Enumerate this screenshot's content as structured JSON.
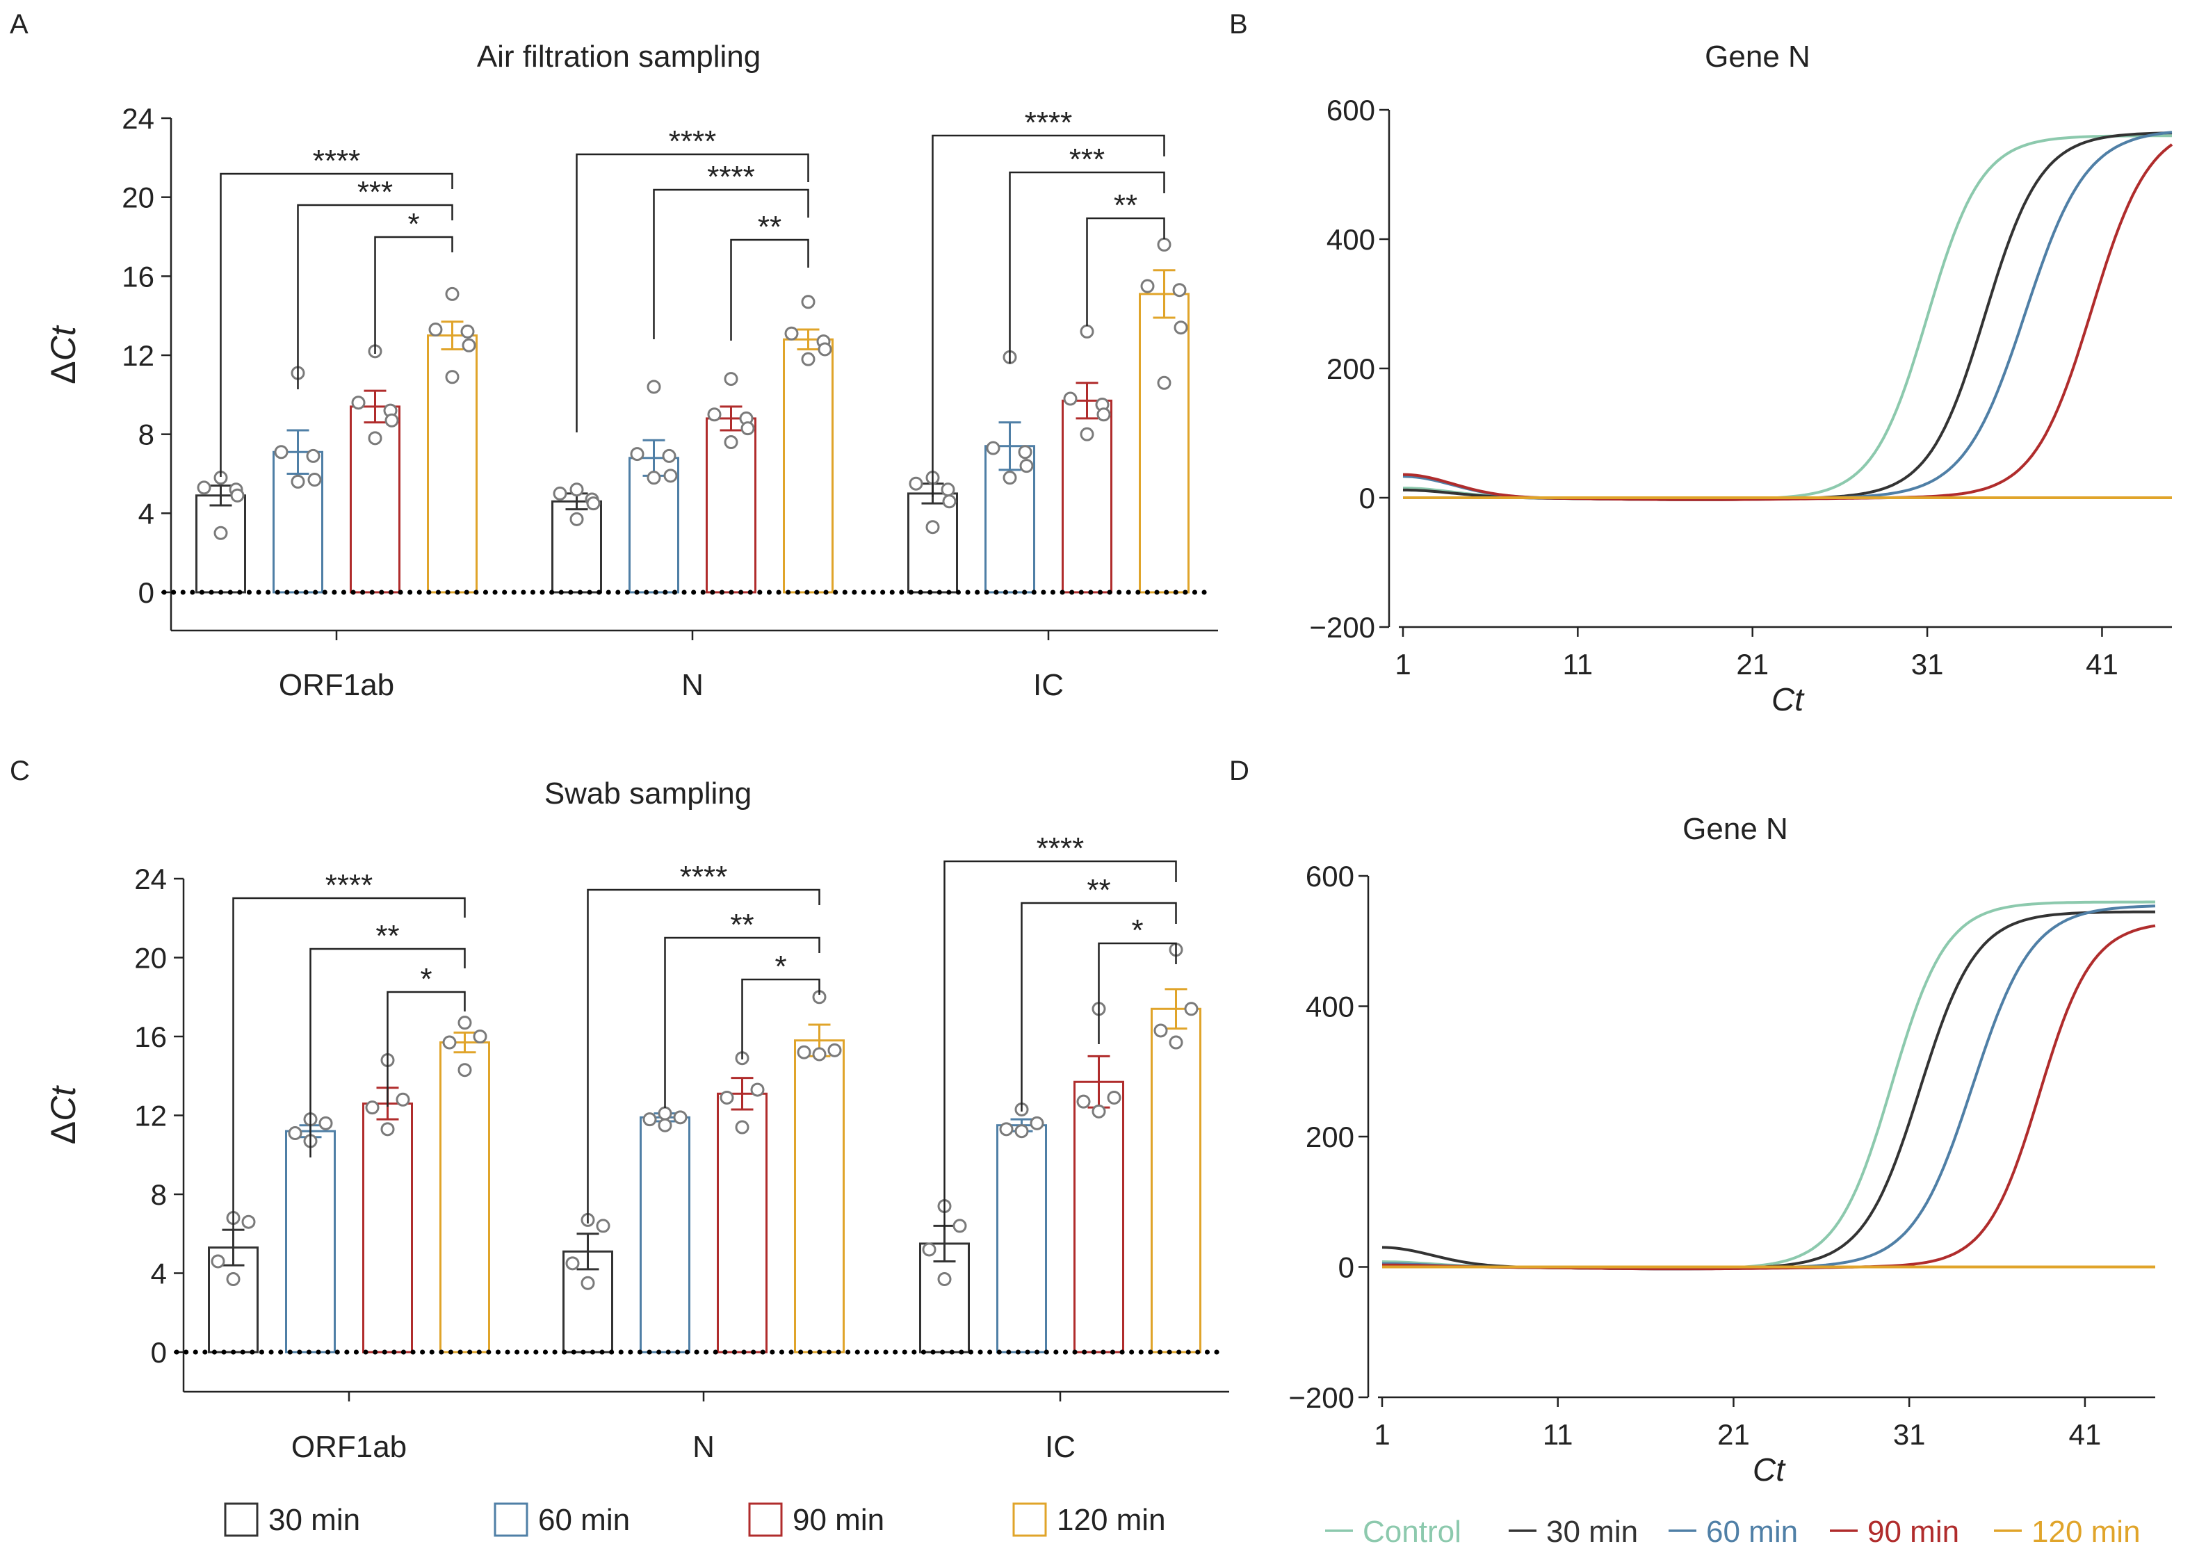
{
  "colors": {
    "control": "#8cc9ad",
    "t30": "#333333",
    "t60": "#4f7fa6",
    "t90": "#b02c2c",
    "t120": "#e0a42a",
    "points": "#7a7a7a",
    "axis": "#222222"
  },
  "chart_data": [
    {
      "panel": "A",
      "type": "bar",
      "title": "Air filtration sampling",
      "ylabel_prefix": "Δ",
      "ylabel_italic": "Ct",
      "ylim": [
        0,
        24
      ],
      "yticks": [
        "0",
        "4",
        "8",
        "12",
        "16",
        "20",
        "24"
      ],
      "categories": [
        "ORF1ab",
        "N",
        "IC"
      ],
      "series": [
        {
          "name": "30 min",
          "values": [
            4.9,
            4.6,
            5.0
          ],
          "errors": [
            0.5,
            0.4,
            0.5
          ],
          "points": [
            [
              5.8,
              5.3,
              5.2,
              4.9,
              3.0
            ],
            [
              5.2,
              5.0,
              4.7,
              4.5,
              3.7
            ],
            [
              5.8,
              5.5,
              5.2,
              4.6,
              3.3
            ]
          ]
        },
        {
          "name": "60 min",
          "values": [
            7.1,
            6.8,
            7.4
          ],
          "errors": [
            1.1,
            0.9,
            1.2
          ],
          "points": [
            [
              11.1,
              7.1,
              6.9,
              5.7,
              5.6
            ],
            [
              10.4,
              7.0,
              6.9,
              5.9,
              5.8
            ],
            [
              11.9,
              7.3,
              7.1,
              6.4,
              5.8
            ]
          ]
        },
        {
          "name": "90 min",
          "values": [
            9.4,
            8.8,
            9.7
          ],
          "errors": [
            0.8,
            0.6,
            0.9
          ],
          "points": [
            [
              12.2,
              9.6,
              9.2,
              8.7,
              7.8
            ],
            [
              10.8,
              9.0,
              8.8,
              8.3,
              7.6
            ],
            [
              13.2,
              9.8,
              9.5,
              9.0,
              8.0
            ]
          ]
        },
        {
          "name": "120 min",
          "values": [
            13.0,
            12.8,
            15.1
          ],
          "errors": [
            0.7,
            0.5,
            1.2
          ],
          "points": [
            [
              15.1,
              13.3,
              13.2,
              12.5,
              10.9
            ],
            [
              14.7,
              13.1,
              12.7,
              12.3,
              11.8
            ],
            [
              17.6,
              15.5,
              15.3,
              13.4,
              10.6
            ]
          ]
        }
      ],
      "significance": [
        [
          {
            "from": 0,
            "to": 3,
            "label": "****"
          },
          {
            "from": 1,
            "to": 3,
            "label": "***"
          },
          {
            "from": 2,
            "to": 3,
            "label": "*"
          }
        ],
        [
          {
            "from": 0,
            "to": 3,
            "label": "****"
          },
          {
            "from": 1,
            "to": 3,
            "label": "****"
          },
          {
            "from": 2,
            "to": 3,
            "label": "**"
          }
        ],
        [
          {
            "from": 0,
            "to": 3,
            "label": "****"
          },
          {
            "from": 1,
            "to": 3,
            "label": "***"
          },
          {
            "from": 2,
            "to": 3,
            "label": "**"
          }
        ]
      ]
    },
    {
      "panel": "B",
      "type": "line",
      "title": "Gene N",
      "xlabel": "Ct",
      "xlim": [
        1,
        45
      ],
      "ylim": [
        -200,
        600
      ],
      "xticks": [
        "1",
        "11",
        "21",
        "31",
        "41"
      ],
      "yticks": [
        "−200",
        "0",
        "200",
        "400",
        "600"
      ],
      "series": [
        {
          "name": "Control",
          "color_key": "control",
          "baseline": 15,
          "plateau": 560,
          "mid": 31.0,
          "slope": 1.55
        },
        {
          "name": "30 min",
          "color_key": "t30",
          "baseline": 12,
          "plateau": 565,
          "mid": 34.3,
          "slope": 1.6
        },
        {
          "name": "60 min",
          "color_key": "t60",
          "baseline": 33,
          "plateau": 570,
          "mid": 36.6,
          "slope": 1.75
        },
        {
          "name": "90 min",
          "color_key": "t90",
          "baseline": 36,
          "plateau": 580,
          "mid": 40.4,
          "slope": 1.65
        },
        {
          "name": "120 min",
          "color_key": "t120",
          "baseline": 0,
          "plateau": 0,
          "mid": 60,
          "slope": 1
        }
      ]
    },
    {
      "panel": "C",
      "type": "bar",
      "title": "Swab sampling",
      "ylabel_prefix": "Δ",
      "ylabel_italic": "Ct",
      "ylim": [
        0,
        24
      ],
      "yticks": [
        "0",
        "4",
        "8",
        "12",
        "16",
        "20",
        "24"
      ],
      "categories": [
        "ORF1ab",
        "N",
        "IC"
      ],
      "series": [
        {
          "name": "30 min",
          "values": [
            5.3,
            5.1,
            5.5
          ],
          "errors": [
            0.9,
            0.9,
            0.9
          ],
          "points": [
            [
              6.8,
              6.6,
              4.6,
              3.7
            ],
            [
              6.7,
              6.4,
              4.5,
              3.5
            ],
            [
              7.4,
              6.4,
              5.2,
              3.7
            ]
          ]
        },
        {
          "name": "60 min",
          "values": [
            11.2,
            11.9,
            11.5
          ],
          "errors": [
            0.3,
            0.2,
            0.3
          ],
          "points": [
            [
              11.8,
              11.6,
              11.1,
              10.7
            ],
            [
              12.1,
              11.9,
              11.8,
              11.5
            ],
            [
              12.3,
              11.6,
              11.3,
              11.2
            ]
          ]
        },
        {
          "name": "90 min",
          "values": [
            12.6,
            13.1,
            13.7
          ],
          "errors": [
            0.8,
            0.8,
            1.3
          ],
          "points": [
            [
              14.8,
              12.8,
              12.4,
              11.3
            ],
            [
              14.9,
              13.3,
              12.9,
              11.4
            ],
            [
              17.4,
              12.9,
              12.7,
              12.2
            ]
          ]
        },
        {
          "name": "120 min",
          "values": [
            15.7,
            15.8,
            17.4
          ],
          "errors": [
            0.5,
            0.8,
            1.0
          ],
          "points": [
            [
              16.7,
              16.0,
              15.7,
              14.3
            ],
            [
              18.0,
              15.3,
              15.2,
              15.1
            ],
            [
              20.4,
              17.4,
              16.3,
              15.7
            ]
          ]
        }
      ],
      "significance": [
        [
          {
            "from": 0,
            "to": 3,
            "label": "****"
          },
          {
            "from": 1,
            "to": 3,
            "label": "**"
          },
          {
            "from": 2,
            "to": 3,
            "label": "*"
          }
        ],
        [
          {
            "from": 0,
            "to": 3,
            "label": "****"
          },
          {
            "from": 1,
            "to": 3,
            "label": "**"
          },
          {
            "from": 2,
            "to": 3,
            "label": "*"
          }
        ],
        [
          {
            "from": 0,
            "to": 3,
            "label": "****"
          },
          {
            "from": 1,
            "to": 3,
            "label": "**"
          },
          {
            "from": 2,
            "to": 3,
            "label": "*"
          }
        ]
      ]
    },
    {
      "panel": "D",
      "type": "line",
      "title": "Gene N",
      "xlabel": "Ct",
      "xlim": [
        1,
        45
      ],
      "ylim": [
        -200,
        600
      ],
      "xticks": [
        "1",
        "11",
        "21",
        "31",
        "41"
      ],
      "yticks": [
        "−200",
        "0",
        "200",
        "400",
        "600"
      ],
      "series": [
        {
          "name": "Control",
          "color_key": "control",
          "baseline": 8,
          "plateau": 560,
          "mid": 30.0,
          "slope": 1.55
        },
        {
          "name": "30 min",
          "color_key": "t30",
          "baseline": 30,
          "plateau": 545,
          "mid": 31.6,
          "slope": 1.6
        },
        {
          "name": "60 min",
          "color_key": "t60",
          "baseline": 5,
          "plateau": 555,
          "mid": 34.6,
          "slope": 1.7
        },
        {
          "name": "90 min",
          "color_key": "t90",
          "baseline": 3,
          "plateau": 530,
          "mid": 38.4,
          "slope": 1.5
        },
        {
          "name": "120 min",
          "color_key": "t120",
          "baseline": 0,
          "plateau": 0,
          "mid": 60,
          "slope": 1
        }
      ]
    }
  ],
  "legend_bars": [
    "30 min",
    "60 min",
    "90 min",
    "120 min"
  ],
  "legend_lines": [
    "Control",
    "30 min",
    "60 min",
    "90 min",
    "120 min"
  ]
}
